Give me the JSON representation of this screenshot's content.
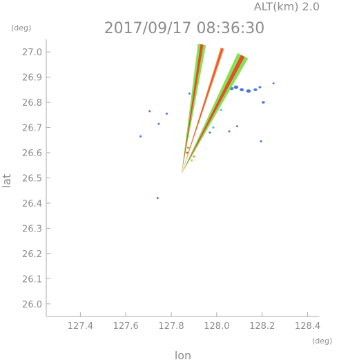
{
  "header": {
    "alt_label": "ALT(km)  2.0",
    "datetime": "2017/09/17 08:36:30"
  },
  "chart_data": {
    "type": "scatter",
    "title": "2017/09/17 08:36:30",
    "xlabel": "lon",
    "ylabel": "lat",
    "x_unit": "(deg)",
    "y_unit": "(deg)",
    "xlim": [
      127.25,
      128.45
    ],
    "ylim": [
      25.95,
      27.05
    ],
    "x_ticks": [
      "127.4",
      "127.6",
      "127.8",
      "128.0",
      "128.2",
      "128.4"
    ],
    "y_ticks": [
      "26.0",
      "26.1",
      "26.2",
      "26.3",
      "26.4",
      "26.5",
      "26.6",
      "26.7",
      "26.8",
      "26.9",
      "27.0"
    ],
    "colors": {
      "axis": "#aaaaaa",
      "text": "#8c8c8c",
      "weak_echo": "#3f6fe0",
      "light_echo": "#3cc4c8",
      "moderate_echo": "#7ee04a",
      "strong_echo": "#f08a3c",
      "heavy_echo": "#e8442e"
    },
    "beams": [
      {
        "name": "beam-north",
        "origin": [
          127.845,
          26.515
        ],
        "end": [
          127.935,
          27.03
        ],
        "width_deg": 0.018,
        "inner": "#7ee04a",
        "core": "#e8442e"
      },
      {
        "name": "beam-middle",
        "origin": [
          127.845,
          26.515
        ],
        "end": [
          128.025,
          27.015
        ],
        "width_deg": 0.008,
        "inner": "#f08a3c",
        "core": "#e8442e"
      },
      {
        "name": "beam-east",
        "origin": [
          127.845,
          26.515
        ],
        "end": [
          128.115,
          26.985
        ],
        "width_deg": 0.026,
        "inner": "#7ee04a",
        "core": "#e8442e"
      }
    ],
    "echo_points": [
      {
        "lon": 128.065,
        "lat": 26.855,
        "size": 0.018,
        "color": "#3f6fe0"
      },
      {
        "lon": 128.085,
        "lat": 26.86,
        "size": 0.02,
        "color": "#3f6fe0"
      },
      {
        "lon": 128.11,
        "lat": 26.85,
        "size": 0.018,
        "color": "#3f6fe0"
      },
      {
        "lon": 128.14,
        "lat": 26.845,
        "size": 0.02,
        "color": "#3f6fe0"
      },
      {
        "lon": 128.17,
        "lat": 26.85,
        "size": 0.016,
        "color": "#3f6fe0"
      },
      {
        "lon": 128.19,
        "lat": 26.86,
        "size": 0.012,
        "color": "#3f6fe0"
      },
      {
        "lon": 128.205,
        "lat": 26.8,
        "size": 0.014,
        "color": "#3f6fe0"
      },
      {
        "lon": 128.25,
        "lat": 26.875,
        "size": 0.008,
        "color": "#3f6fe0"
      },
      {
        "lon": 128.195,
        "lat": 26.645,
        "size": 0.01,
        "color": "#3f6fe0"
      },
      {
        "lon": 127.705,
        "lat": 26.765,
        "size": 0.008,
        "color": "#3f6fe0"
      },
      {
        "lon": 127.745,
        "lat": 26.715,
        "size": 0.006,
        "color": "#3f6fe0"
      },
      {
        "lon": 127.78,
        "lat": 26.755,
        "size": 0.004,
        "color": "#3f6fe0"
      },
      {
        "lon": 127.88,
        "lat": 26.835,
        "size": 0.008,
        "color": "#3f6fe0"
      },
      {
        "lon": 127.74,
        "lat": 26.42,
        "size": 0.008,
        "color": "#3f6fe0"
      },
      {
        "lon": 127.665,
        "lat": 26.665,
        "size": 0.004,
        "color": "#3f6fe0"
      },
      {
        "lon": 128.09,
        "lat": 26.705,
        "size": 0.006,
        "color": "#3f6fe0"
      },
      {
        "lon": 128.055,
        "lat": 26.685,
        "size": 0.006,
        "color": "#3f6fe0"
      },
      {
        "lon": 127.955,
        "lat": 26.71,
        "size": 0.006,
        "color": "#3f6fe0"
      },
      {
        "lon": 127.985,
        "lat": 26.7,
        "size": 0.01,
        "color": "#3cc4c8"
      },
      {
        "lon": 127.97,
        "lat": 26.68,
        "size": 0.01,
        "color": "#3f6fe0"
      },
      {
        "lon": 128.02,
        "lat": 26.77,
        "size": 0.008,
        "color": "#3cc4c8"
      },
      {
        "lon": 127.875,
        "lat": 26.62,
        "size": 0.012,
        "color": "#f08a3c"
      },
      {
        "lon": 127.87,
        "lat": 26.6,
        "size": 0.01,
        "color": "#e8442e"
      },
      {
        "lon": 127.9,
        "lat": 26.585,
        "size": 0.01,
        "color": "#f08a3c"
      },
      {
        "lon": 127.89,
        "lat": 26.57,
        "size": 0.008,
        "color": "#7ee04a"
      }
    ]
  }
}
